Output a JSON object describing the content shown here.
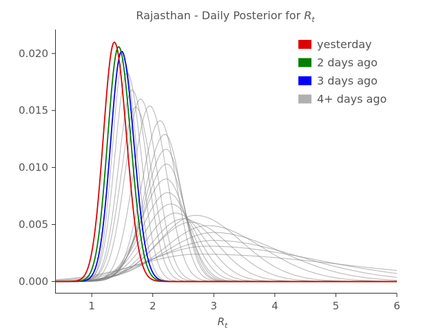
{
  "chart_data": {
    "type": "line",
    "title_prefix": "Rajasthan - Daily Posterior for ",
    "title_symbol": "R",
    "title_subscript": "t",
    "xlabel_symbol": "R",
    "xlabel_subscript": "t",
    "ylabel": "",
    "xlim": [
      0.4,
      6.0
    ],
    "ylim": [
      -0.001,
      0.0221
    ],
    "x_ticks": [
      1,
      2,
      3,
      4,
      5,
      6
    ],
    "x_tick_labels": [
      "1",
      "2",
      "3",
      "4",
      "5",
      "6"
    ],
    "y_ticks": [
      0.0,
      0.005,
      0.01,
      0.015,
      0.02
    ],
    "y_tick_labels": [
      "0.000",
      "0.005",
      "0.010",
      "0.015",
      "0.020"
    ],
    "grid": false,
    "legend_position": "top-right",
    "legend": [
      {
        "label": "yesterday",
        "color": "#e00000"
      },
      {
        "label": "2 days ago",
        "color": "#008000"
      },
      {
        "label": "3 days ago",
        "color": "#0000ff"
      },
      {
        "label": "4+ days ago",
        "color": "#b0b0b0"
      }
    ],
    "series": [
      {
        "name": "yesterday",
        "color": "#e00000",
        "peak_x": 1.37,
        "peak_y": 0.021,
        "sigma_left": 0.18,
        "sigma_right": 0.2
      },
      {
        "name": "2 days ago",
        "color": "#008000",
        "peak_x": 1.44,
        "peak_y": 0.0206,
        "sigma_left": 0.18,
        "sigma_right": 0.2
      },
      {
        "name": "3 days ago",
        "color": "#0000ff",
        "peak_x": 1.49,
        "peak_y": 0.0202,
        "sigma_left": 0.18,
        "sigma_right": 0.2
      }
    ],
    "older_series": {
      "name": "4+ days ago",
      "color": "#808080",
      "curves": [
        {
          "peak_x": 1.52,
          "peak_y": 0.0195,
          "sigma_left": 0.18,
          "sigma_right": 0.21
        },
        {
          "peak_x": 1.58,
          "peak_y": 0.0183,
          "sigma_left": 0.2,
          "sigma_right": 0.23
        },
        {
          "peak_x": 1.66,
          "peak_y": 0.0168,
          "sigma_left": 0.22,
          "sigma_right": 0.25
        },
        {
          "peak_x": 1.72,
          "peak_y": 0.0153,
          "sigma_left": 0.24,
          "sigma_right": 0.27
        },
        {
          "peak_x": 1.8,
          "peak_y": 0.016,
          "sigma_left": 0.25,
          "sigma_right": 0.27
        },
        {
          "peak_x": 1.95,
          "peak_y": 0.0154,
          "sigma_left": 0.27,
          "sigma_right": 0.28
        },
        {
          "peak_x": 2.12,
          "peak_y": 0.0141,
          "sigma_left": 0.3,
          "sigma_right": 0.27
        },
        {
          "peak_x": 2.2,
          "peak_y": 0.0129,
          "sigma_left": 0.33,
          "sigma_right": 0.27
        },
        {
          "peak_x": 2.22,
          "peak_y": 0.0116,
          "sigma_left": 0.35,
          "sigma_right": 0.28
        },
        {
          "peak_x": 2.23,
          "peak_y": 0.0103,
          "sigma_left": 0.37,
          "sigma_right": 0.3
        },
        {
          "peak_x": 2.22,
          "peak_y": 0.009,
          "sigma_left": 0.4,
          "sigma_right": 0.33
        },
        {
          "peak_x": 2.25,
          "peak_y": 0.0078,
          "sigma_left": 0.42,
          "sigma_right": 0.37
        },
        {
          "peak_x": 2.3,
          "peak_y": 0.0068,
          "sigma_left": 0.45,
          "sigma_right": 0.42
        },
        {
          "peak_x": 2.38,
          "peak_y": 0.006,
          "sigma_left": 0.48,
          "sigma_right": 0.48
        },
        {
          "peak_x": 2.5,
          "peak_y": 0.0055,
          "sigma_left": 0.52,
          "sigma_right": 0.55
        },
        {
          "peak_x": 2.62,
          "peak_y": 0.0052,
          "sigma_left": 0.57,
          "sigma_right": 0.65
        },
        {
          "peak_x": 2.7,
          "peak_y": 0.0058,
          "sigma_left": 0.6,
          "sigma_right": 0.75
        },
        {
          "peak_x": 2.9,
          "peak_y": 0.0049,
          "sigma_left": 0.7,
          "sigma_right": 0.9
        },
        {
          "peak_x": 3.0,
          "peak_y": 0.0043,
          "sigma_left": 0.8,
          "sigma_right": 1.1
        },
        {
          "peak_x": 3.0,
          "peak_y": 0.0036,
          "sigma_left": 0.9,
          "sigma_right": 1.4
        },
        {
          "peak_x": 2.9,
          "peak_y": 0.0031,
          "sigma_left": 0.95,
          "sigma_right": 1.8
        },
        {
          "peak_x": 2.75,
          "peak_y": 0.0024,
          "sigma_left": 1.0,
          "sigma_right": 2.4
        }
      ]
    }
  }
}
